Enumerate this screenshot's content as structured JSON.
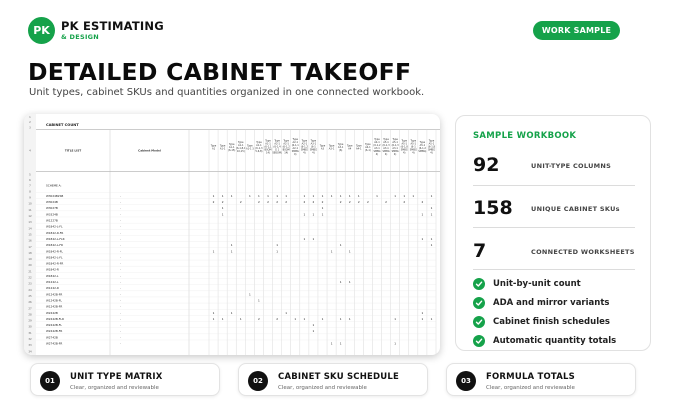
{
  "brand": {
    "logo_initials": "PK",
    "name": "PK ESTIMATING",
    "tagline": "& DESIGN",
    "accent_color": "#15a24a"
  },
  "header": {
    "badge": "WORK SAMPLE",
    "title": "DETAILED CABINET TAKEOFF",
    "subtitle": "Unit types, cabinet SKUs and quantities organized in one connected workbook."
  },
  "spreadsheet": {
    "sheet_title": "CABINET COUNT",
    "col_headers": [
      "TITLE LIST",
      "Cabinet Model"
    ],
    "row_numbers": [
      "1",
      "2",
      "3",
      "4",
      "5",
      "6",
      "7",
      "8",
      "9",
      "10",
      "11",
      "12",
      "13",
      "14",
      "15",
      "16",
      "17",
      "18",
      "19",
      "20",
      "21",
      "22",
      "23",
      "24",
      "25",
      "26",
      "27",
      "28",
      "29",
      "30",
      "31",
      "32",
      "33",
      "34",
      "35"
    ],
    "section_label": "SCHEME A:",
    "sku_rows": [
      {
        "sku": "W3024B2SB",
        "qty": [
          "1",
          "1",
          "1",
          "",
          "1",
          "1",
          "1",
          "1",
          "1",
          "",
          "1",
          "1",
          "1",
          "1",
          "1",
          "1",
          "1",
          "",
          "1",
          "",
          "1",
          "1",
          "1",
          "",
          "1"
        ]
      },
      {
        "sku": "W3024B",
        "qty": [
          "2",
          "2",
          "",
          "2",
          "",
          "2",
          "2",
          "2",
          "2",
          "",
          "2",
          "2",
          "2",
          "",
          "2",
          "2",
          "2",
          "2",
          "",
          "2",
          "",
          "2",
          "",
          "2",
          ""
        ]
      },
      {
        "sku": "W3027B",
        "qty": [
          "",
          "1",
          "",
          "",
          "",
          "",
          "",
          "",
          "",
          "",
          "",
          "",
          "1",
          "",
          "",
          "",
          "",
          "",
          "",
          "",
          "",
          "",
          "",
          "",
          "1"
        ]
      },
      {
        "sku": "W3324B",
        "qty": [
          "",
          "1",
          "",
          "",
          "",
          "",
          "",
          "",
          "",
          "",
          "1",
          "1",
          "1",
          "",
          "",
          "",
          "",
          "",
          "",
          "",
          "",
          "",
          "",
          "1",
          "1"
        ]
      },
      {
        "sku": "W1227B",
        "qty": []
      },
      {
        "sku": "W1842-L-FL",
        "qty": []
      },
      {
        "sku": "W1842-R-FR",
        "qty": []
      },
      {
        "sku": "W1842-L-FLR",
        "qty": [
          "",
          "",
          "",
          "",
          "",
          "",
          "",
          "",
          "",
          "",
          "1",
          "1",
          "",
          "",
          "",
          "",
          "",
          "",
          "",
          "",
          "",
          "",
          "",
          "1",
          "1"
        ]
      },
      {
        "sku": "W1842-L-FR",
        "qty": [
          "",
          "",
          "1",
          "",
          "",
          "",
          "",
          "1",
          "",
          "",
          "",
          "",
          "",
          "",
          "1",
          "",
          "",
          "",
          "",
          "",
          "",
          "",
          "",
          "",
          "1"
        ]
      },
      {
        "sku": "W1842-R-FL",
        "qty": [
          "1",
          "",
          "1",
          "",
          "",
          "",
          "",
          "1",
          "",
          "",
          "",
          "",
          "",
          "1",
          "",
          "1",
          "",
          "",
          "",
          "",
          "",
          "",
          "",
          "",
          ""
        ]
      },
      {
        "sku": "W1842-L-FL",
        "qty": []
      },
      {
        "sku": "W1842-R-FR",
        "qty": []
      },
      {
        "sku": "W1842-R",
        "qty": []
      },
      {
        "sku": "W1842-L",
        "qty": []
      },
      {
        "sku": "W1242-L",
        "qty": [
          "",
          "",
          "",
          "",
          "",
          "",
          "",
          "",
          "",
          "",
          "",
          "",
          "",
          "",
          "1",
          "1",
          "",
          "",
          "",
          "",
          "",
          "",
          "",
          "",
          ""
        ]
      },
      {
        "sku": "W1242-R",
        "qty": []
      },
      {
        "sku": "W1242B-FR",
        "qty": [
          "",
          "",
          "",
          "",
          "1",
          "",
          "",
          "",
          "",
          "",
          "",
          "",
          "",
          "",
          "",
          "",
          "",
          "",
          "",
          "",
          "",
          "",
          "",
          "",
          ""
        ]
      },
      {
        "sku": "W1242B-FL",
        "qty": [
          "",
          "",
          "",
          "",
          "",
          "1",
          "",
          "",
          "",
          "",
          "",
          "",
          "",
          "",
          "",
          "",
          "",
          "",
          "",
          "",
          "",
          "",
          "",
          "",
          ""
        ]
      },
      {
        "sku": "W1242B-FR",
        "qty": []
      },
      {
        "sku": "W2442B",
        "qty": [
          "1",
          "",
          "1",
          "",
          "",
          "",
          "",
          "",
          "1",
          "",
          "",
          "",
          "",
          "",
          "",
          "",
          "",
          "",
          "",
          "",
          "",
          "",
          "",
          "1",
          ""
        ]
      },
      {
        "sku": "W2442B-FLR",
        "qty": [
          "1",
          "1",
          "",
          "1",
          "",
          "2",
          "",
          "2",
          "",
          "1",
          "1",
          "",
          "1",
          "",
          "1",
          "1",
          "",
          "",
          "",
          "",
          "1",
          "",
          "",
          "1",
          "1"
        ]
      },
      {
        "sku": "W2442B-FL",
        "qty": [
          "",
          "",
          "",
          "",
          "",
          "",
          "",
          "",
          "",
          "",
          "",
          "1",
          "",
          "",
          "",
          "",
          "",
          "",
          "",
          "",
          "",
          "",
          "",
          "",
          ""
        ]
      },
      {
        "sku": "W2442B-FR",
        "qty": [
          "",
          "",
          "",
          "",
          "",
          "",
          "",
          "",
          "",
          "",
          "",
          "1",
          "",
          "",
          "",
          "",
          "",
          "",
          "",
          "",
          "",
          "",
          "",
          "",
          ""
        ]
      },
      {
        "sku": "W2742B",
        "qty": []
      },
      {
        "sku": "W2742B-FR",
        "qty": [
          "",
          "",
          "",
          "",
          "",
          "",
          "",
          "",
          "",
          "",
          "",
          "",
          "",
          "1",
          "1",
          "",
          "",
          "",
          "",
          "",
          "1",
          "",
          "",
          "",
          ""
        ]
      }
    ],
    "unit_headers": [
      "Type A1",
      "Type A1-1",
      "Type A1-1 (6-15)",
      "Type A1-1 (6-1,8,1 10,15)",
      "Type A1-1 3",
      "Type A1-1 (6-1,3 5,6,8)",
      "Type A1-1 (6-1,1 BSOM 14)",
      "Type A2-1 (6-1,4 G 1 SBSOM)",
      "Type A2-1 (6-1,2 BSOM 14)",
      "Type A2-1 (6-1,1 A2-1 SMBG 4)",
      "Type A2-1 (6-1,2 SMBG 4)",
      "Type A3-1 (6-1 SMBG 4)",
      "Type A3",
      "Type A3-1",
      "Type A3-1 (6)",
      "Type A4",
      "Type A4-1",
      "Type A4-1 (6-1)",
      "Type A4-1 (6-1,2 A3-1 SMBG 4)",
      "Type A5-1 (6-1,3 A3-1 SMBG 4)",
      "Type A5-1 (6-1,3 A3-1 SMBG 4)",
      "Type A5-1 (6-1,8 SMBG 4)",
      "Type A5-1 (6-1 SMBG 4)",
      "Type A5-1 (6-1,2 SMBG)",
      "Type A5-1 (6-1,8 SMBG 4)"
    ]
  },
  "stats": {
    "title": "SAMPLE WORKBOOK",
    "items": [
      {
        "value": "92",
        "label": "UNIT-TYPE COLUMNS"
      },
      {
        "value": "158",
        "label": "UNIQUE CABINET SKUs"
      },
      {
        "value": "7",
        "label": "CONNECTED WORKSHEETS"
      }
    ],
    "features": [
      "Unit-by-unit count",
      "ADA and mirror variants",
      "Cabinet finish schedules",
      "Automatic quantity totals"
    ]
  },
  "steps": [
    {
      "num": "01",
      "title": "UNIT TYPE MATRIX",
      "desc": "Clear, organized and reviewable"
    },
    {
      "num": "02",
      "title": "CABINET SKU SCHEDULE",
      "desc": "Clear, organized and reviewable"
    },
    {
      "num": "03",
      "title": "FORMULA TOTALS",
      "desc": "Clear, organized and reviewable"
    }
  ]
}
